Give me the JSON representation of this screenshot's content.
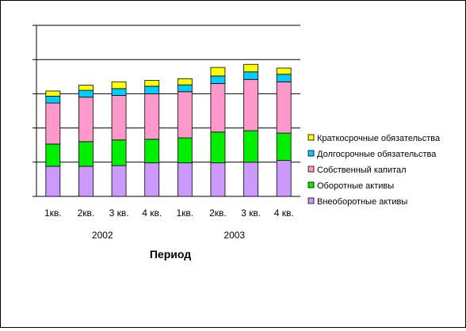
{
  "chart_data": {
    "type": "bar",
    "stacked": true,
    "title": "",
    "xlabel": "Период",
    "ylabel": "",
    "ylim": [
      0,
      5
    ],
    "y_tick_labels_shown": false,
    "grid": "horizontal",
    "legend_position": "right",
    "categories": [
      "1кв.",
      "2кв.",
      "3 кв.",
      "4 кв.",
      "1кв.",
      "2кв.",
      "3 кв.",
      "4 кв."
    ],
    "groups": [
      {
        "label": "2002",
        "count": 4
      },
      {
        "label": "2003",
        "count": 4
      }
    ],
    "series": [
      {
        "name": "Внеоборотные активы",
        "color": "#CC99FF",
        "values": [
          0.88,
          0.88,
          0.9,
          0.98,
          0.98,
          0.98,
          1.0,
          1.05
        ]
      },
      {
        "name": "Оборотные активы",
        "color": "#00EE00",
        "values": [
          0.65,
          0.72,
          0.75,
          0.69,
          0.73,
          0.9,
          0.92,
          0.8
        ]
      },
      {
        "name": "Собственный капитал",
        "color": "#FF99CC",
        "values": [
          1.2,
          1.3,
          1.3,
          1.33,
          1.35,
          1.42,
          1.5,
          1.5
        ]
      },
      {
        "name": "Долгосрочные обязательства",
        "color": "#00CCFF",
        "values": [
          0.2,
          0.2,
          0.2,
          0.22,
          0.2,
          0.22,
          0.22,
          0.22
        ]
      },
      {
        "name": "Краткосрочные обязательства",
        "color": "#FFFF00",
        "values": [
          0.15,
          0.15,
          0.2,
          0.17,
          0.18,
          0.25,
          0.22,
          0.18
        ]
      }
    ]
  }
}
